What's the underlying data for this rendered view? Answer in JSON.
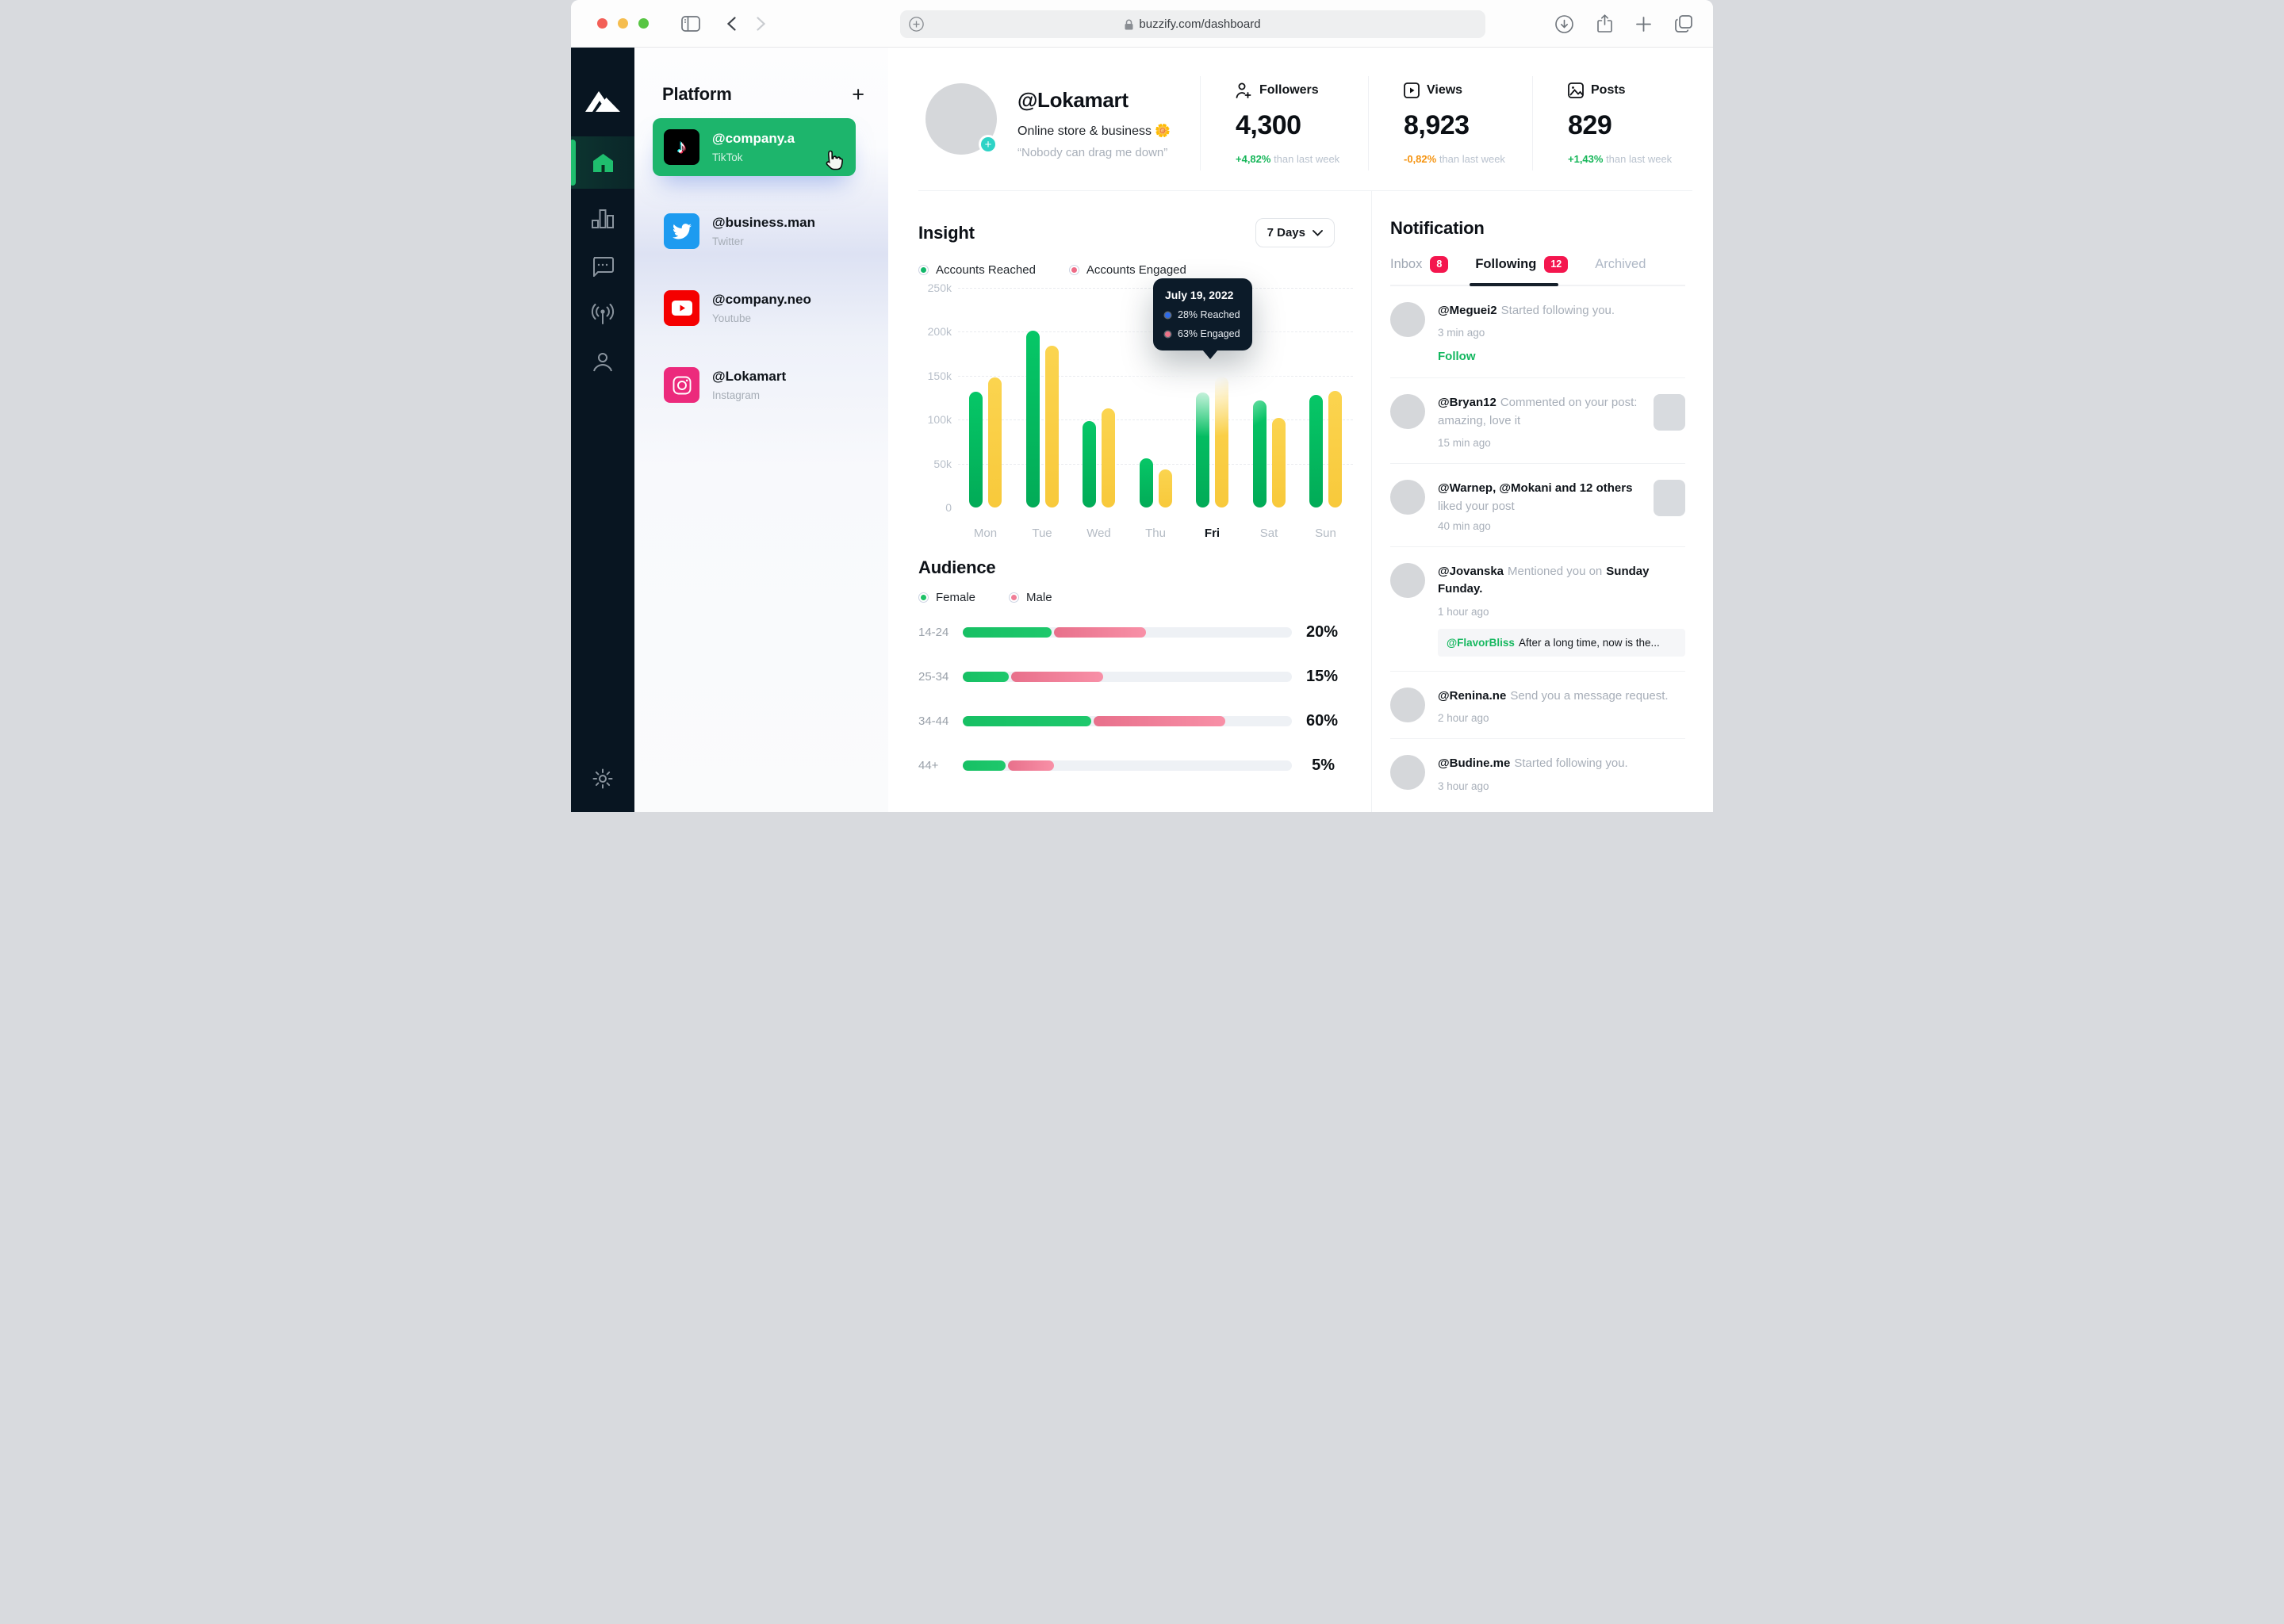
{
  "browser": {
    "url": "buzzify.com/dashboard",
    "traffic_lights": [
      "#f35f57",
      "#f5bd4f",
      "#58c543"
    ],
    "icons": [
      "sidebar-toggle",
      "back",
      "forward",
      "add-tab-circle",
      "lock",
      "download",
      "share",
      "new-tab",
      "tab-overview"
    ]
  },
  "sidebar": {
    "icons": [
      "mountain-logo",
      "home",
      "bar-chart",
      "chat",
      "broadcast",
      "user",
      "settings"
    ],
    "active": "home",
    "accent": "#1fbe6e"
  },
  "platform": {
    "title": "Platform",
    "add_label": "+",
    "items": [
      {
        "handle": "@company.a",
        "network": "TikTok",
        "selected": true,
        "tile_color": "#000000"
      },
      {
        "handle": "@business.man",
        "network": "Twitter",
        "selected": false,
        "tile_color": "#1d9bf0"
      },
      {
        "handle": "@company.neo",
        "network": "Youtube",
        "selected": false,
        "tile_color": "#f50000"
      },
      {
        "handle": "@Lokamart",
        "network": "Instagram",
        "selected": false,
        "tile_color": "#ec2a7c"
      }
    ]
  },
  "profile": {
    "handle": "@Lokamart",
    "bio": "Online store & business 🌼",
    "quote": "“Nobody can drag me down”"
  },
  "stats": [
    {
      "label": "Followers",
      "icon": "user-plus-icon",
      "value": "4,300",
      "delta": "+4,82%",
      "delta_color": "#16b659",
      "suffix": " than last week"
    },
    {
      "label": "Views",
      "icon": "play-square-icon",
      "value": "8,923",
      "delta": "-0,82%",
      "delta_color": "#f59411",
      "suffix": " than last week"
    },
    {
      "label": "Posts",
      "icon": "image-icon",
      "value": "829",
      "delta": "+1,43%",
      "delta_color": "#16b659",
      "suffix": " than last week"
    }
  ],
  "insight": {
    "title": "Insight",
    "range_label": "7 Days",
    "legend": [
      {
        "label": "Accounts Reached",
        "color": "#12b76a"
      },
      {
        "label": "Accounts Engaged",
        "color": "#ee6c87"
      }
    ]
  },
  "chart_data": {
    "type": "bar",
    "title": "Insight — accounts reached vs engaged, last 7 days",
    "categories": [
      "Mon",
      "Tue",
      "Wed",
      "Thu",
      "Fri",
      "Sat",
      "Sun"
    ],
    "series": [
      {
        "name": "Accounts Reached",
        "color": "#04b85e",
        "values": [
          132000,
          201000,
          98000,
          56000,
          131000,
          122000,
          128000
        ]
      },
      {
        "name": "Accounts Engaged",
        "color": "#f9ce45",
        "values": [
          148000,
          184000,
          113000,
          43000,
          149000,
          102000,
          133000
        ]
      }
    ],
    "ylim": [
      0,
      250000
    ],
    "yticks": [
      "250k",
      "200k",
      "150k",
      "100k",
      "50k",
      "0"
    ],
    "grid": "dashed-horizontal",
    "highlighted_category": "Fri",
    "legend_position": "top-left"
  },
  "tooltip": {
    "date": "July 19, 2022",
    "rows": [
      {
        "dot_color": "#2e6bea",
        "label": "28% Reached"
      },
      {
        "dot_color": "#ee7389",
        "label": "63% Engaged"
      }
    ]
  },
  "audience": {
    "title": "Audience",
    "legend": [
      {
        "label": "Female",
        "color": "#1ec167"
      },
      {
        "label": "Male",
        "color": "#ef7e97"
      }
    ],
    "rows": [
      {
        "label": "14-24",
        "female_pct": 27,
        "male_pct": 28,
        "value": "20%"
      },
      {
        "label": "25-34",
        "female_pct": 14,
        "male_pct": 28,
        "value": "15%"
      },
      {
        "label": "34-44",
        "female_pct": 39,
        "male_pct": 40,
        "value": "60%"
      },
      {
        "label": "44+",
        "female_pct": 13,
        "male_pct": 14,
        "value": "5%"
      }
    ]
  },
  "notifications": {
    "title": "Notification",
    "tabs": [
      {
        "label": "Inbox",
        "badge": "8",
        "active": false
      },
      {
        "label": "Following",
        "badge": "12",
        "active": true
      },
      {
        "label": "Archived",
        "badge": "",
        "active": false
      }
    ],
    "items": [
      {
        "user": "@Meguei2",
        "text": "Started following you.",
        "time": "3 min ago",
        "action": "Follow"
      },
      {
        "user": "@Bryan12",
        "text": "Commented on your post: amazing, love it",
        "time": "15 min ago"
      },
      {
        "user": "@Warnep, @Mokani and 12 others",
        "text2": "liked your post",
        "time": "40 min ago"
      },
      {
        "user": "@Jovanska",
        "text": "Mentioned you on",
        "bold": "Sunday Funday.",
        "time": "1 hour ago",
        "quote_user": "@FlavorBliss",
        "quote_text": "After a long time, now is the..."
      },
      {
        "user": "@Renina.ne",
        "text": "Send you a message request.",
        "time": "2 hour ago"
      },
      {
        "user": "@Budine.me",
        "text": "Started following you.",
        "time": "3 hour ago"
      }
    ]
  }
}
